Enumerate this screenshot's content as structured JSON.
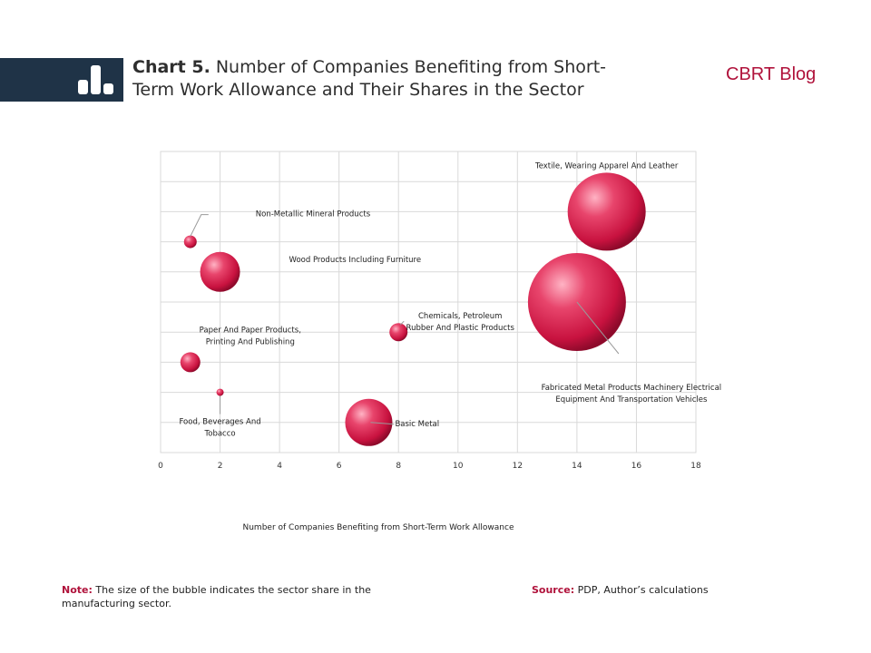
{
  "header": {
    "chart_number": "Chart 5.",
    "title_line1": " Number of Companies Benefiting from Short-",
    "title_line2": "Term Work Allowance and Their Shares in the Sector",
    "brand": "CBRT Blog",
    "band_color": "#1f3347",
    "brand_color": "#b0123b"
  },
  "footer": {
    "note_label": "Note:",
    "note_text": " The size of the bubble indicates the sector share in the manufacturing sector.",
    "source_label": "Source:",
    "source_text": " PDP, Author’s calculations"
  },
  "chart_data": {
    "type": "scatter",
    "subtype": "bubble",
    "title": "",
    "xlabel": "Number of Companies Benefiting from Short-Term Work Allowance",
    "ylabel": "",
    "xlim": [
      0,
      18
    ],
    "xticks": [
      0,
      2,
      4,
      6,
      8,
      10,
      12,
      14,
      16,
      18
    ],
    "y_gridlines": 10,
    "grid": true,
    "legend": "none",
    "bubble_color": "#e0325c",
    "points": [
      {
        "label": "Textile, Wearing Apparel And Leather",
        "x": 15,
        "y": 8,
        "size": 43
      },
      {
        "label": "Fabricated Metal Products Machinery Electrical Equipment And Transportation Vehicles",
        "x": 14,
        "y": 5,
        "size": 54
      },
      {
        "label": "Non-Metallic Mineral Products",
        "x": 1,
        "y": 7,
        "size": 7
      },
      {
        "label": "Wood Products Including Furniture",
        "x": 2,
        "y": 6,
        "size": 22
      },
      {
        "label": "Chemicals, Petroleum Rubber And Plastic Products",
        "x": 8,
        "y": 4,
        "size": 10
      },
      {
        "label": "Paper And Paper Products, Printing And Publishing",
        "x": 1,
        "y": 3,
        "size": 11
      },
      {
        "label": "Food, Beverages And Tobacco",
        "x": 2,
        "y": 2,
        "size": 4
      },
      {
        "label": "Basic Metal",
        "x": 7,
        "y": 1,
        "size": 26
      }
    ]
  }
}
